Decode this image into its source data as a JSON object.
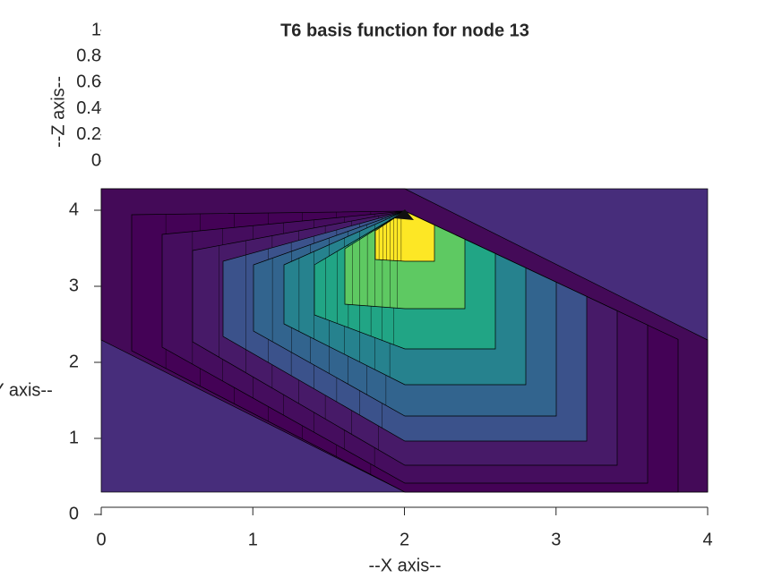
{
  "chart_data": {
    "type": "surface",
    "title": "T6 basis function for node 13",
    "x_label": "--X axis--",
    "y_label": "--Y axis--",
    "z_label": "--Z axis--",
    "xlim": [
      0,
      4
    ],
    "xticks": [
      0,
      1,
      2,
      3,
      4
    ],
    "ylim": [
      0,
      4
    ],
    "yticks": [
      0,
      1,
      2,
      3,
      4
    ],
    "zlim": [
      0,
      1
    ],
    "zticks": [
      0,
      0.2,
      0.4,
      0.6,
      0.8,
      1
    ],
    "colormap": "viridis"
  }
}
